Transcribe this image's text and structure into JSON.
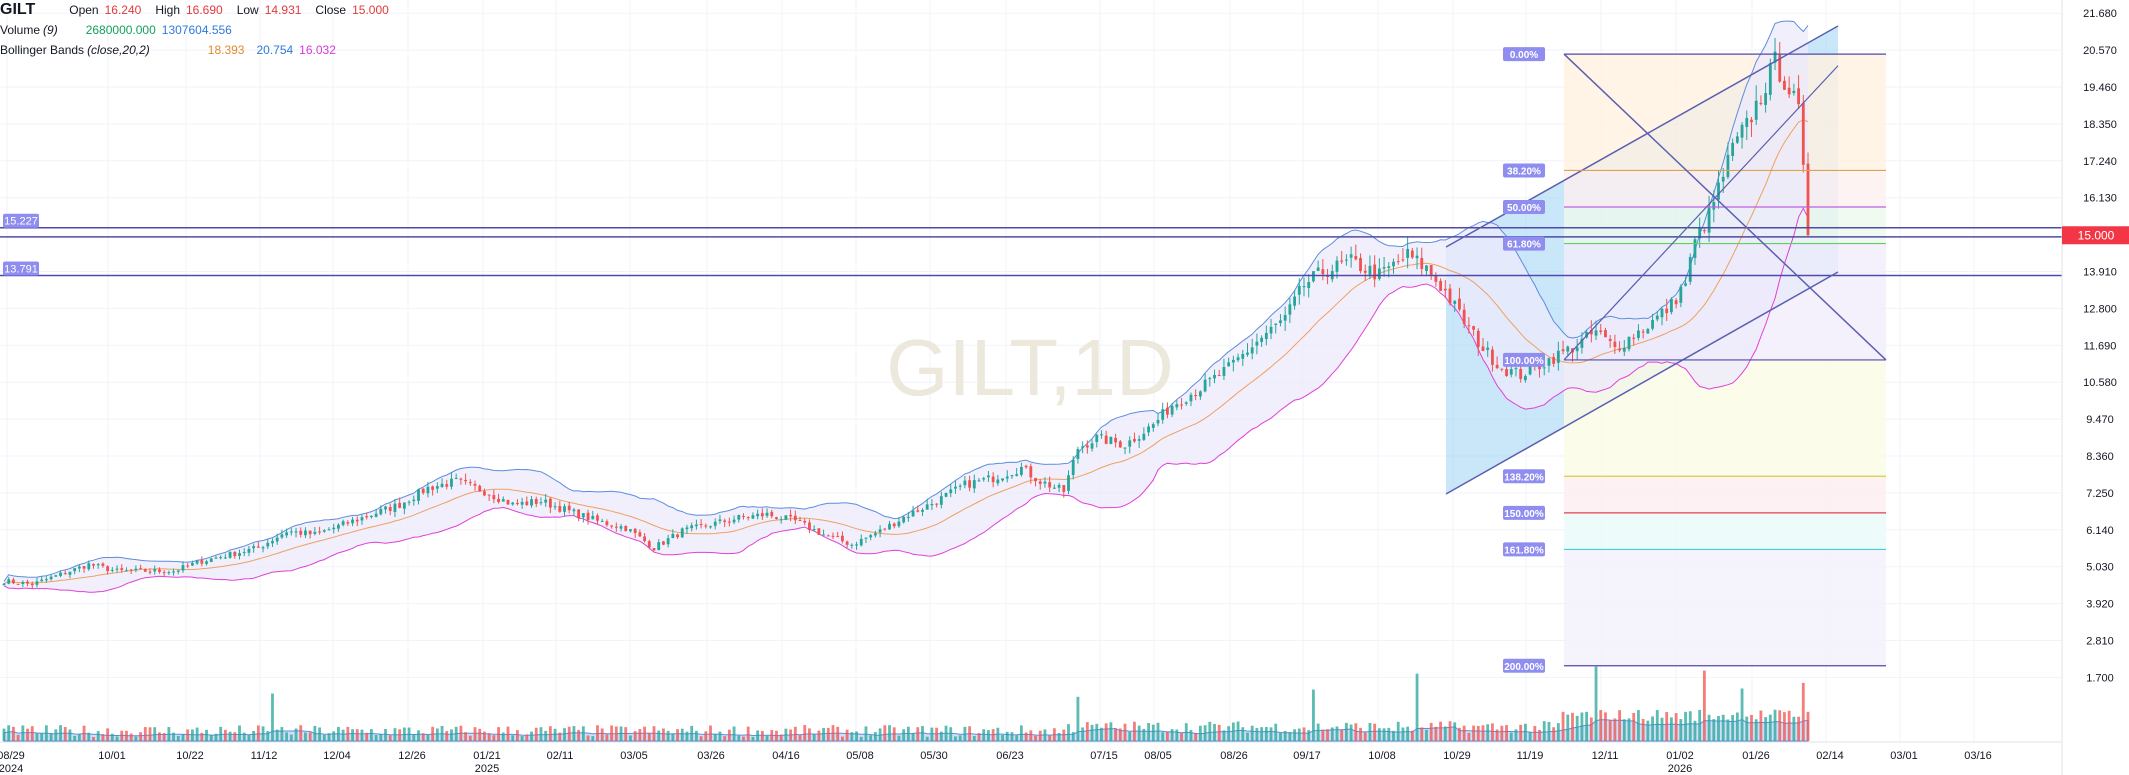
{
  "legend": {
    "ticker": "GILT",
    "open_label": "Open",
    "open": "16.240",
    "high_label": "High",
    "high": "16.690",
    "low_label": "Low",
    "low": "14.931",
    "close_label": "Close",
    "close": "15.000",
    "volume_label": "Volume",
    "volume_param": "(9)",
    "volume_value": "2680000.000",
    "volume_ma": "1307604.556",
    "bb_label": "Bollinger Bands",
    "bb_params": "(close,20,2)",
    "bb_middle": "18.393",
    "bb_upper": "20.754",
    "bb_lower": "16.032"
  },
  "watermark": "GILT,1D",
  "colors": {
    "up": "#26a69a",
    "down": "#ef5350",
    "bb_upper": "#5b8dde",
    "bb_lower": "#e040d8",
    "bb_basis": "#f0a060",
    "bb_fill": "#ece9fb",
    "hline": "#4f4aa8",
    "channel": "#5a5fb0",
    "price_tag": "#f23645",
    "fib_label": "#8f8ef0"
  },
  "chart_data": {
    "type": "candlestick",
    "y_ticks": [
      "21.680",
      "20.570",
      "19.460",
      "18.350",
      "17.240",
      "16.130",
      "13.910",
      "12.800",
      "11.690",
      "10.580",
      "9.470",
      "8.360",
      "7.250",
      "6.140",
      "5.030",
      "3.920",
      "2.810",
      "1.700"
    ],
    "x_ticks": [
      {
        "label": "08/29",
        "sub": "2024"
      },
      {
        "label": "10/01",
        "sub": ""
      },
      {
        "label": "10/22",
        "sub": ""
      },
      {
        "label": "11/12",
        "sub": ""
      },
      {
        "label": "12/04",
        "sub": ""
      },
      {
        "label": "12/26",
        "sub": ""
      },
      {
        "label": "01/21",
        "sub": "2025"
      },
      {
        "label": "02/11",
        "sub": ""
      },
      {
        "label": "03/05",
        "sub": ""
      },
      {
        "label": "03/26",
        "sub": ""
      },
      {
        "label": "04/16",
        "sub": ""
      },
      {
        "label": "05/08",
        "sub": ""
      },
      {
        "label": "05/30",
        "sub": ""
      },
      {
        "label": "06/23",
        "sub": ""
      },
      {
        "label": "07/15",
        "sub": ""
      },
      {
        "label": "08/05",
        "sub": ""
      },
      {
        "label": "08/26",
        "sub": ""
      },
      {
        "label": "09/17",
        "sub": ""
      },
      {
        "label": "10/08",
        "sub": ""
      },
      {
        "label": "10/29",
        "sub": ""
      },
      {
        "label": "11/19",
        "sub": ""
      },
      {
        "label": "12/11",
        "sub": ""
      },
      {
        "label": "01/02",
        "sub": "2026"
      },
      {
        "label": "01/26",
        "sub": ""
      },
      {
        "label": "02/14",
        "sub": ""
      },
      {
        "label": "03/01",
        "sub": ""
      },
      {
        "label": "03/16",
        "sub": ""
      }
    ],
    "last_price": "15.000",
    "horizontal_lines": [
      {
        "label": "15.227",
        "price": 15.227
      },
      {
        "label": "13.791",
        "price": 13.791
      },
      {
        "label": "",
        "price": 14.95
      }
    ],
    "fib_levels": [
      {
        "label": "0.00%",
        "price": 20.45,
        "color": "#4f4aa8"
      },
      {
        "label": "38.20%",
        "price": 16.95,
        "color": "#e0a050"
      },
      {
        "label": "50.00%",
        "price": 15.85,
        "color": "#c060e0"
      },
      {
        "label": "61.80%",
        "price": 14.75,
        "color": "#60d060"
      },
      {
        "label": "100.00%",
        "price": 11.25,
        "color": "#4f4aa8"
      },
      {
        "label": "138.20%",
        "price": 7.75,
        "color": "#d0d040"
      },
      {
        "label": "150.00%",
        "price": 6.65,
        "color": "#e04050"
      },
      {
        "label": "161.80%",
        "price": 5.55,
        "color": "#40d0d0"
      },
      {
        "label": "200.00%",
        "price": 2.05,
        "color": "#4f4aa8"
      }
    ],
    "close_path": [
      [
        0,
        4.6
      ],
      [
        6,
        4.5
      ],
      [
        12,
        4.8
      ],
      [
        18,
        5.1
      ],
      [
        24,
        4.9
      ],
      [
        30,
        4.9
      ],
      [
        36,
        4.9
      ],
      [
        42,
        5.2
      ],
      [
        48,
        5.4
      ],
      [
        54,
        5.6
      ],
      [
        60,
        6.1
      ],
      [
        66,
        6.0
      ],
      [
        72,
        6.3
      ],
      [
        78,
        6.6
      ],
      [
        84,
        6.9
      ],
      [
        90,
        7.4
      ],
      [
        96,
        7.6
      ],
      [
        102,
        7.3
      ],
      [
        108,
        6.9
      ],
      [
        114,
        7.0
      ],
      [
        120,
        6.7
      ],
      [
        126,
        6.4
      ],
      [
        132,
        6.2
      ],
      [
        138,
        5.6
      ],
      [
        144,
        6.1
      ],
      [
        150,
        6.3
      ],
      [
        156,
        6.5
      ],
      [
        162,
        6.6
      ],
      [
        168,
        6.4
      ],
      [
        174,
        6.0
      ],
      [
        180,
        5.7
      ],
      [
        186,
        6.1
      ],
      [
        192,
        6.6
      ],
      [
        198,
        7.0
      ],
      [
        204,
        7.5
      ],
      [
        210,
        7.7
      ],
      [
        216,
        8.0
      ],
      [
        220,
        7.6
      ],
      [
        225,
        7.3
      ],
      [
        228,
        8.6
      ],
      [
        232,
        8.9
      ],
      [
        238,
        8.7
      ],
      [
        244,
        9.3
      ],
      [
        248,
        9.9
      ],
      [
        254,
        10.4
      ],
      [
        260,
        11.0
      ],
      [
        266,
        11.8
      ],
      [
        272,
        12.5
      ],
      [
        276,
        13.5
      ],
      [
        280,
        13.9
      ],
      [
        286,
        14.2
      ],
      [
        292,
        13.8
      ],
      [
        298,
        14.4
      ],
      [
        302,
        14.0
      ],
      [
        306,
        13.3
      ],
      [
        310,
        12.4
      ],
      [
        314,
        11.6
      ],
      [
        318,
        11.0
      ],
      [
        322,
        10.8
      ],
      [
        326,
        11.1
      ],
      [
        330,
        11.4
      ],
      [
        334,
        11.7
      ],
      [
        338,
        12.1
      ],
      [
        342,
        11.6
      ],
      [
        346,
        12.0
      ],
      [
        350,
        12.4
      ],
      [
        354,
        12.9
      ],
      [
        357,
        13.6
      ],
      [
        359,
        14.8
      ],
      [
        362,
        15.6
      ],
      [
        364,
        16.4
      ],
      [
        367,
        17.6
      ],
      [
        370,
        18.3
      ],
      [
        373,
        19.2
      ],
      [
        376,
        20.2
      ],
      [
        379,
        19.4
      ],
      [
        381,
        18.7
      ],
      [
        383,
        15.0
      ]
    ],
    "n_bars": 384
  }
}
